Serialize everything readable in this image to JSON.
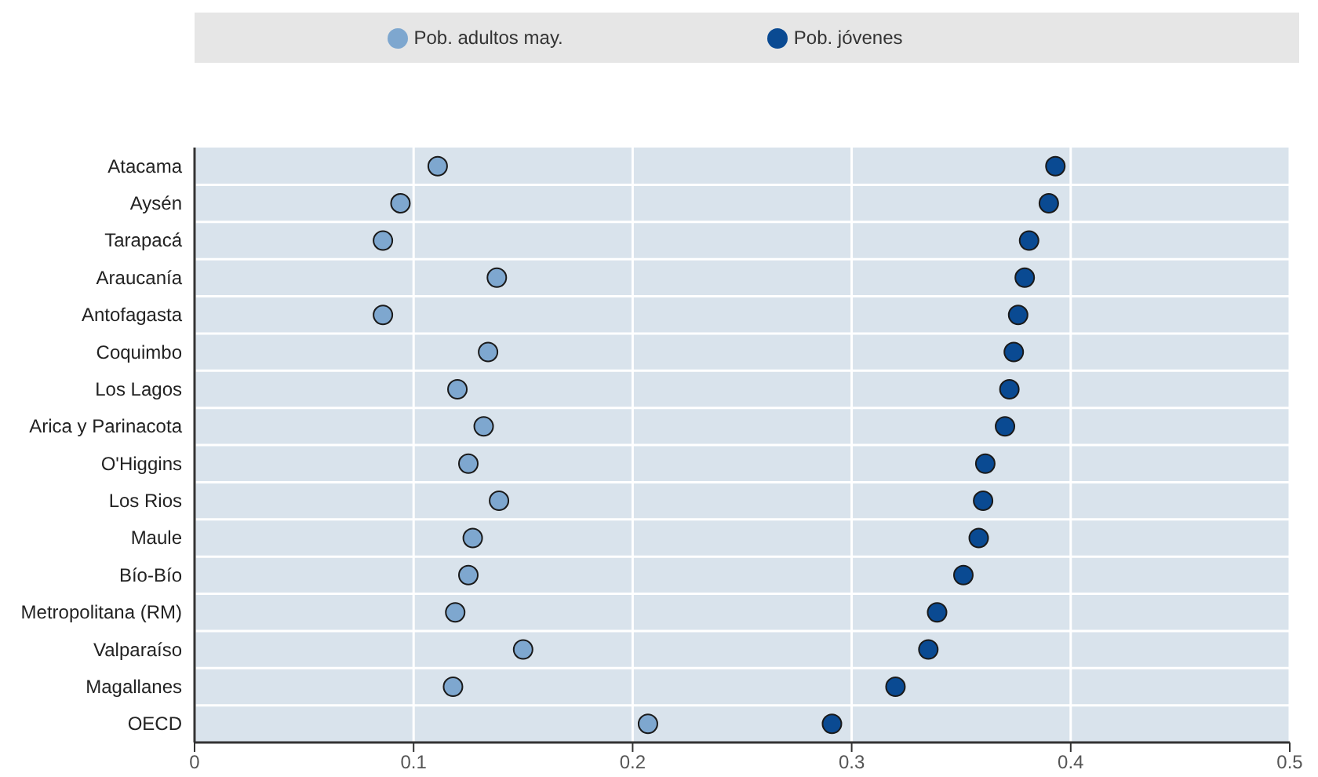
{
  "chart_data": {
    "type": "scatter",
    "orientation": "horizontal",
    "categories": [
      "Atacama",
      "Aysén",
      "Tarapacá",
      "Araucanía",
      "Antofagasta",
      "Coquimbo",
      "Los Lagos",
      "Arica y Parinacota",
      "O'Higgins",
      "Los Rios",
      "Maule",
      "Bío-Bío",
      "Metropolitana (RM)",
      "Valparaíso",
      "Magallanes",
      "OECD"
    ],
    "series": [
      {
        "name": "Pob. adultos may.",
        "color": "#7ea7cf",
        "values": [
          0.111,
          0.094,
          0.086,
          0.138,
          0.086,
          0.134,
          0.12,
          0.132,
          0.125,
          0.139,
          0.127,
          0.125,
          0.119,
          0.15,
          0.118,
          0.207
        ]
      },
      {
        "name": "Pob. jóvenes",
        "color": "#0a4a92",
        "values": [
          0.393,
          0.39,
          0.381,
          0.379,
          0.376,
          0.374,
          0.372,
          0.37,
          0.361,
          0.36,
          0.358,
          0.351,
          0.339,
          0.335,
          0.32,
          0.291
        ]
      }
    ],
    "xlim": [
      0,
      0.5
    ],
    "xticks": [
      0,
      0.1,
      0.2,
      0.3,
      0.4,
      0.5
    ],
    "grid": true,
    "legend": "top",
    "marker": "circle"
  }
}
